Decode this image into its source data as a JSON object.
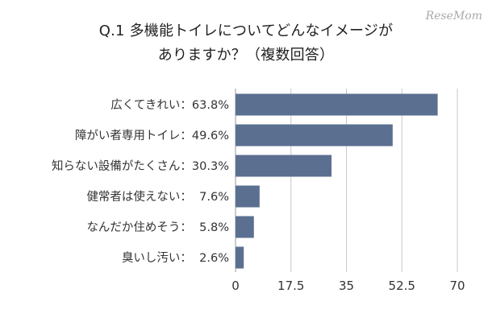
{
  "watermark": "ReseMom",
  "chart_data": {
    "type": "bar",
    "orientation": "horizontal",
    "title_line1": "Q.1 多機能トイレについてどんなイメージが",
    "title_line2": "ありますか？（複数回答）",
    "categories": [
      "広くてきれい：63.8%",
      "障がい者専用トイレ：49.6%",
      "知らない設備がたくさん：30.3%",
      "健常者は使えない：  7.6%",
      "なんだか住めそう：  5.8%",
      "臭いし汚い：  2.6%"
    ],
    "values": [
      63.8,
      49.6,
      30.3,
      7.6,
      5.8,
      2.6
    ],
    "xlim": [
      0,
      70
    ],
    "xticks": [
      "0",
      "17.5",
      "35",
      "52.5",
      "70"
    ],
    "tick_values": [
      0,
      17.5,
      35,
      52.5,
      70
    ],
    "bar_color": "#5b6f91",
    "grid": "vertical"
  }
}
